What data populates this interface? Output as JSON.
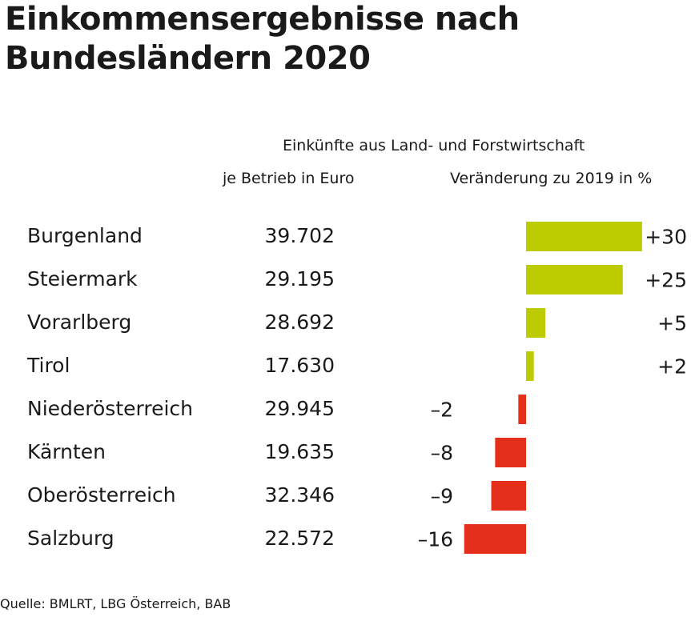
{
  "title": "Einkommensergebnisse nach Bundesländern 2020",
  "header": {
    "main": "Einkünfte aus Land- und Forstwirtschaft",
    "absolute": "je Betrieb in Euro",
    "change": "Veränderung zu 2019 in %"
  },
  "colors": {
    "positive": "#bccc00",
    "negative": "#e4301b"
  },
  "chart_data": {
    "type": "bar",
    "categories": [
      "Burgenland",
      "Steiermark",
      "Vorarlberg",
      "Tirol",
      "Niederösterreich",
      "Kärnten",
      "Oberösterreich",
      "Salzburg"
    ],
    "absolute_labels": [
      "39.702",
      "29.195",
      "28.692",
      "17.630",
      "29.945",
      "19.635",
      "32.346",
      "22.572"
    ],
    "values": [
      30,
      25,
      5,
      2,
      -2,
      -8,
      -9,
      -16
    ],
    "value_labels": [
      "+30",
      "+25",
      "+5",
      "+2",
      "–2",
      "–8",
      "–9",
      "–16"
    ]
  },
  "source": "Quelle: BMLRT, LBG Österreich, BAB"
}
